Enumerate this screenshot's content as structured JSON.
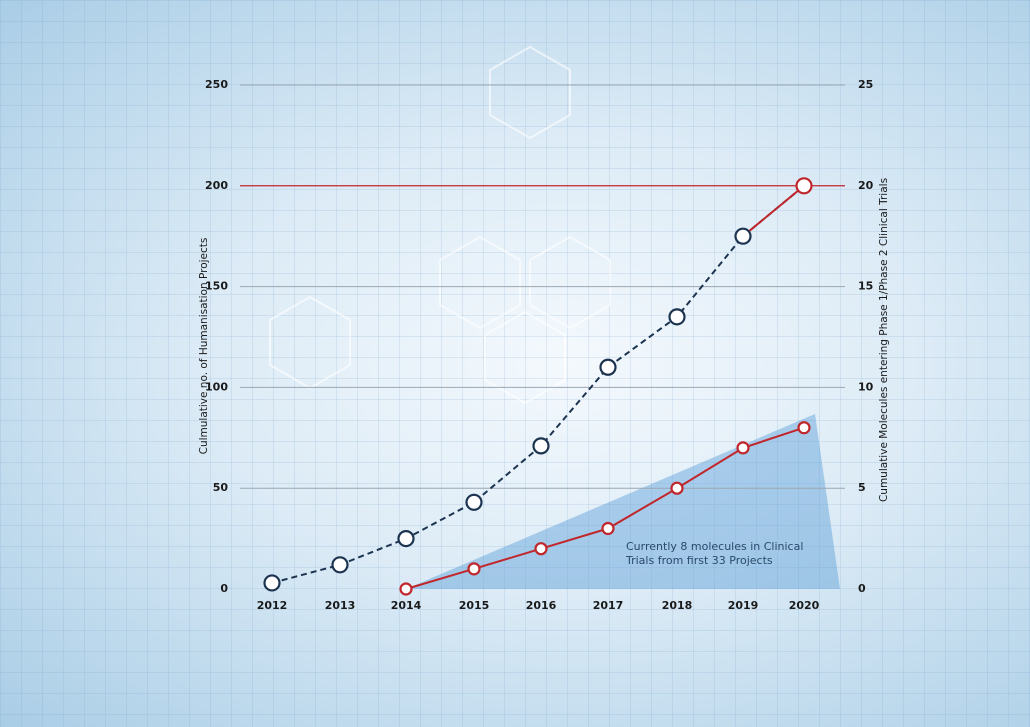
{
  "chart_data": {
    "type": "line",
    "y_label": "Culmulative no. of Humanisation Projects",
    "y2_label": "Cumulative Molecules entering Phase 1/Phase 2 Clinical Trials",
    "categories": [
      "2012",
      "2013",
      "2014",
      "2015",
      "2016",
      "2017",
      "2018",
      "2019",
      "2020"
    ],
    "series": [
      {
        "color": "#1c3450",
        "dashed": true,
        "values": [
          3,
          12,
          25,
          43,
          71,
          110,
          135,
          175,
          200
        ]
      },
      {
        "color": "#c0272d",
        "dashed": false,
        "axis": "y2",
        "values": [
          null,
          null,
          0,
          1,
          2,
          3,
          5,
          7,
          8
        ]
      }
    ],
    "ylim": [
      0,
      250
    ],
    "yticks": [
      0,
      50,
      100,
      150,
      200,
      250
    ],
    "y2lim": [
      0,
      25
    ],
    "y2ticks": [
      0,
      5,
      10,
      15,
      20,
      25
    ],
    "grid": true,
    "reference_line": {
      "value": 200,
      "color": "#c0272d"
    },
    "annotation": "Currently 8 molecules in Clinical Trials from first 33 Projects"
  }
}
